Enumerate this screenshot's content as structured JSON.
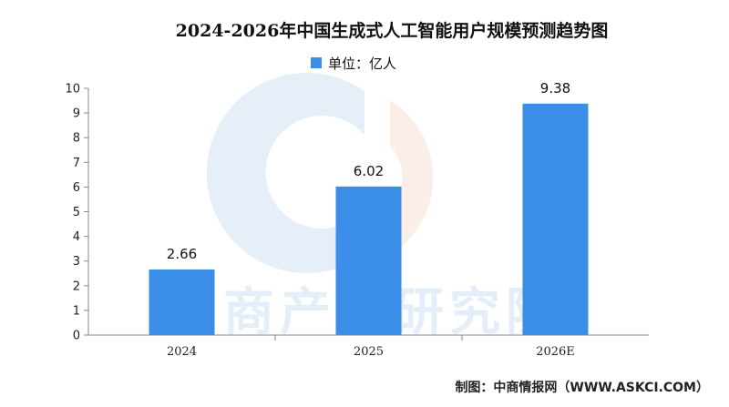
{
  "chart_data": {
    "type": "bar",
    "title": "2024-2026年中国生成式人工智能用户规模预测趋势图",
    "legend": {
      "label": "单位：亿人",
      "position": "top-center"
    },
    "categories": [
      "2024",
      "2025",
      "2026E"
    ],
    "series": [
      {
        "name": "单位：亿人",
        "values": [
          2.66,
          6.02,
          9.38
        ],
        "color": "#3b8ee8"
      }
    ],
    "data_labels": [
      "2.66",
      "6.02",
      "9.38"
    ],
    "yticks": [
      "0",
      "1",
      "2",
      "3",
      "4",
      "5",
      "6",
      "7",
      "8",
      "9",
      "10"
    ],
    "ylim": [
      0,
      10
    ],
    "grid": false
  },
  "watermark": {
    "text": "中商产业研究院",
    "logo": "circle-logo"
  },
  "source": "制图：中商情报网（WWW.ASKCI.COM）"
}
